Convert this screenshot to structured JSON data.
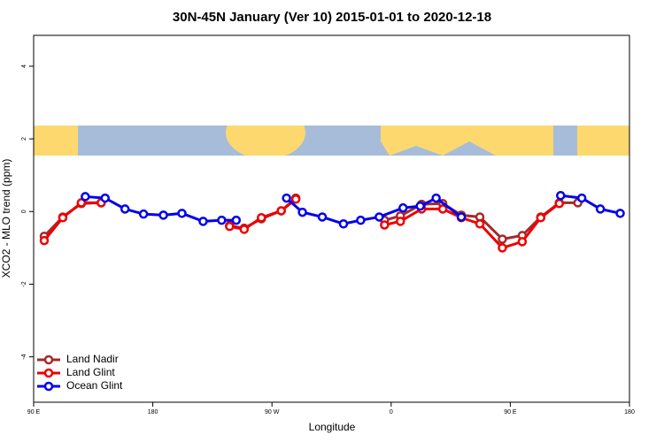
{
  "chart_data": {
    "type": "line",
    "title": "30N-45N January (Ver 10)   2015-01-01 to 2020-12-18",
    "x_label": "Longitude",
    "y_label": "XCO2 - MLO trend (ppm)",
    "xlim": [
      90,
      540
    ],
    "ylim": [
      -5.25,
      4.85
    ],
    "xticks": [
      {
        "value": 90,
        "label": "90 E"
      },
      180,
      {
        "value": 270,
        "label": "90 W"
      },
      {
        "value": 360,
        "label": "0"
      },
      {
        "value": 450,
        "label": "90 E"
      },
      {
        "value": 540,
        "label": "180"
      }
    ],
    "yticks": [
      -4,
      -2,
      0,
      2,
      4
    ],
    "legend": "bottom-left",
    "series": [
      {
        "name": "Land Nadir",
        "color": "#a52a2a",
        "x": [
          98,
          112,
          126,
          141,
          null,
          238,
          249,
          262,
          277,
          288,
          null,
          355,
          367,
          383,
          399,
          413,
          427,
          444,
          459,
          473,
          487,
          501
        ],
        "values": [
          -0.68,
          -0.15,
          0.22,
          0.24,
          null,
          -0.39,
          -0.46,
          -0.2,
          0.02,
          0.37,
          null,
          -0.24,
          -0.12,
          0.2,
          0.22,
          -0.1,
          -0.15,
          -0.76,
          -0.66,
          -0.15,
          0.24,
          0.24
        ]
      },
      {
        "name": "Land Glint",
        "color": "#ee0000",
        "x": [
          98,
          112,
          126,
          141,
          null,
          238,
          249,
          262,
          277,
          288,
          null,
          355,
          367,
          383,
          399,
          413,
          427,
          444,
          459,
          473,
          487
        ],
        "values": [
          -0.8,
          -0.17,
          0.24,
          0.24,
          null,
          -0.41,
          -0.49,
          -0.17,
          0.02,
          0.34,
          null,
          -0.37,
          -0.27,
          0.07,
          0.07,
          -0.17,
          -0.34,
          -1.0,
          -0.83,
          -0.17,
          0.22
        ]
      },
      {
        "name": "Ocean Glint",
        "color": "#0000ee",
        "x": [
          129,
          144,
          159,
          173,
          188,
          202,
          218,
          232,
          243,
          null,
          281,
          293,
          308,
          324,
          337,
          351,
          369,
          382,
          394,
          413,
          null,
          488,
          504,
          518,
          533
        ],
        "values": [
          0.41,
          0.37,
          0.07,
          -0.07,
          -0.1,
          -0.05,
          -0.27,
          -0.24,
          -0.24,
          null,
          0.37,
          -0.02,
          -0.15,
          -0.34,
          -0.24,
          -0.15,
          0.1,
          0.15,
          0.37,
          -0.15,
          null,
          0.44,
          0.37,
          0.07,
          -0.05
        ]
      }
    ]
  }
}
